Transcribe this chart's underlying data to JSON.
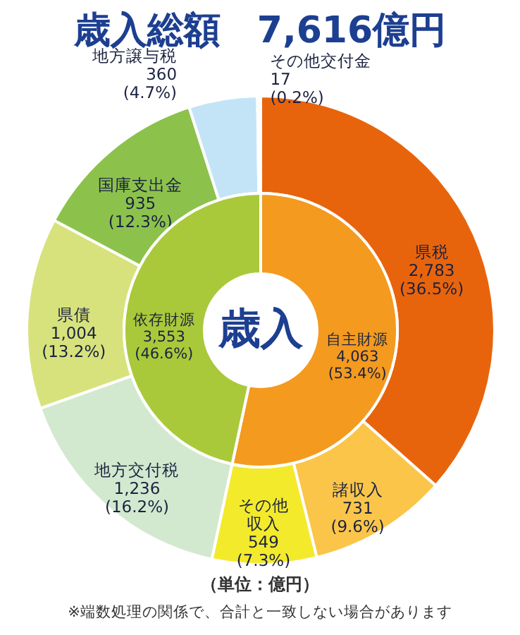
{
  "chart_data": [
    {
      "type": "donut",
      "title": "歳入総額　7,616億円",
      "categories": [
        "県税",
        "諸収入",
        "その他収入",
        "地方交付税",
        "県債",
        "国庫支出金",
        "地方譲与税",
        "その他交付金"
      ],
      "values": [
        2783,
        731,
        549,
        1236,
        1004,
        935,
        360,
        17
      ],
      "value_labels": [
        "2,783\n(36.5%)",
        "731\n(9.6%)",
        "549\n(7.3%)",
        "1,236\n(16.2%)",
        "1,004\n(13.2%)",
        "935\n(12.3%)",
        "360\n(4.7%)",
        "17\n(0.2%)"
      ],
      "colors": [
        "#e8640c",
        "#fbc54a",
        "#f3ea2c",
        "#d3e9cf",
        "#d7e27c",
        "#8cc24c",
        "#c3e4f6",
        "#ffffff"
      ],
      "annotations": [
        "（単位：億円）",
        "※端数処理の関係で、合計と一致しない場合があります"
      ]
    },
    {
      "type": "donut",
      "categories": [
        "自主財源",
        "依存財源"
      ],
      "values": [
        4063,
        3553
      ],
      "value_labels": [
        "4,063\n(53.4%)",
        "3,553\n(46.6%)"
      ],
      "colors": [
        "#f39a1f",
        "#a9c93a"
      ],
      "annotations": [
        "歳入"
      ]
    }
  ]
}
